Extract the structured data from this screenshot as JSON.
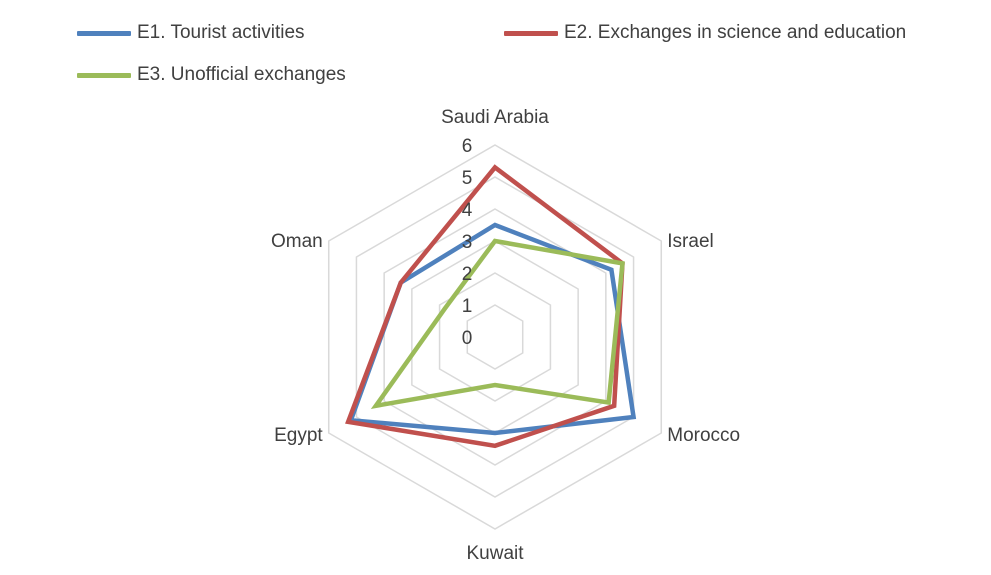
{
  "chart_data": {
    "type": "radar",
    "categories": [
      "Saudi Arabia",
      "Israel",
      "Morocco",
      "Kuwait",
      "Egypt",
      "Oman"
    ],
    "rlim": [
      0,
      6
    ],
    "ticks": [
      "0",
      "1",
      "2",
      "3",
      "4",
      "5",
      "6"
    ],
    "series": [
      {
        "name": "E1. Tourist activities",
        "color": "#4F81BD",
        "values": [
          3.5,
          4.2,
          5.0,
          3.0,
          5.2,
          3.4
        ]
      },
      {
        "name": "E2. Exchanges in science and education",
        "color": "#C0504D",
        "values": [
          5.3,
          4.6,
          4.3,
          3.4,
          5.3,
          3.4
        ]
      },
      {
        "name": "E3. Unofficial exchanges",
        "color": "#9BBB59",
        "values": [
          3.0,
          4.6,
          4.1,
          1.5,
          4.3,
          1.8
        ]
      }
    ],
    "legend_position": "top",
    "grid": true
  }
}
